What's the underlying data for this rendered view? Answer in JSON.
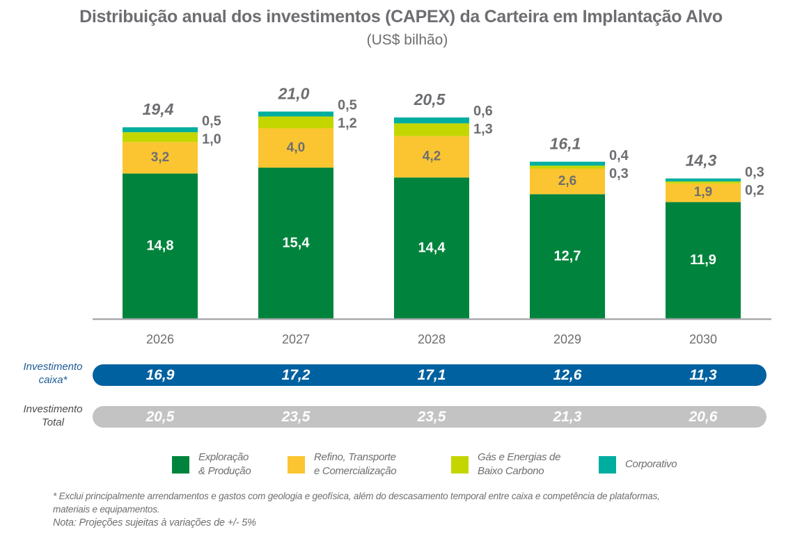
{
  "chart_data": {
    "type": "bar",
    "stacked": true,
    "title": "Distribuição anual dos investimentos (CAPEX) da Carteira em Implantação Alvo",
    "subtitle": "(US$ bilhão)",
    "xlabel": "",
    "ylabel": "",
    "grid": false,
    "categories": [
      "2026",
      "2027",
      "2028",
      "2029",
      "2030"
    ],
    "series": [
      {
        "name": "Exploração & Produção",
        "color": "#00843d",
        "values": [
          14.8,
          15.4,
          14.4,
          12.7,
          11.9
        ],
        "labels": [
          "14,8",
          "15,4",
          "14,4",
          "12,7",
          "11,9"
        ]
      },
      {
        "name": "Refino, Transporte e Comercialização",
        "color": "#fbc531",
        "values": [
          3.2,
          4.0,
          4.2,
          2.6,
          1.9
        ],
        "labels": [
          "3,2",
          "4,0",
          "4,2",
          "2,6",
          "1,9"
        ]
      },
      {
        "name": "Gás e Energias de Baixo Carbono",
        "color": "#c4d600",
        "values": [
          1.0,
          1.2,
          1.3,
          0.3,
          0.2
        ],
        "labels": [
          "1,0",
          "1,2",
          "1,3",
          "0,3",
          "0,2"
        ]
      },
      {
        "name": "Corporativo",
        "color": "#00aea0",
        "values": [
          0.5,
          0.5,
          0.6,
          0.4,
          0.3
        ],
        "labels": [
          "0,5",
          "0,5",
          "0,6",
          "0,4",
          "0,3"
        ]
      }
    ],
    "totals": [
      19.4,
      21.0,
      20.5,
      16.1,
      14.3
    ],
    "total_labels": [
      "19,4",
      "21,0",
      "20,5",
      "16,1",
      "14,3"
    ],
    "legend": {
      "position": "bottom",
      "entries": [
        {
          "line1": "Exploração",
          "line2": "& Produção",
          "color": "#00843d"
        },
        {
          "line1": "Refino, Transporte",
          "line2": "e Comercialização",
          "color": "#fbc531"
        },
        {
          "line1": "Gás e Energias de",
          "line2": "Baixo Carbono",
          "color": "#c4d600"
        },
        {
          "line1": "Corporativo",
          "line2": "",
          "color": "#00aea0"
        }
      ]
    },
    "summary_rows": [
      {
        "label_line1": "Investimento",
        "label_line2": "caixa*",
        "color": "#0061a0",
        "label_color": "#1a5a96",
        "values": [
          16.9,
          17.2,
          17.1,
          12.6,
          11.3
        ],
        "value_labels": [
          "16,9",
          "17,2",
          "17,1",
          "12,6",
          "11,3"
        ]
      },
      {
        "label_line1": "Investimento",
        "label_line2": "Total",
        "color": "#c3c3c3",
        "label_color": "#4a4a4a",
        "values": [
          20.5,
          23.5,
          23.5,
          21.3,
          20.6
        ],
        "value_labels": [
          "20,5",
          "23,5",
          "23,5",
          "21,3",
          "20,6"
        ]
      }
    ],
    "footnotes": [
      "* Exclui principalmente arrendamentos  e gastos com geologia e geofísica, além do descasamento temporal entre caixa e competência de plataformas,",
      "materiais e equipamentos.",
      "Nota: Projeções sujeitas à variações de +/- 5%"
    ]
  },
  "colors": {
    "text_gray": "#6d6e71",
    "axis": "#a7a9ac",
    "bar_label_light": "#ffffff",
    "bar_label_dark": "#6d6e71"
  }
}
